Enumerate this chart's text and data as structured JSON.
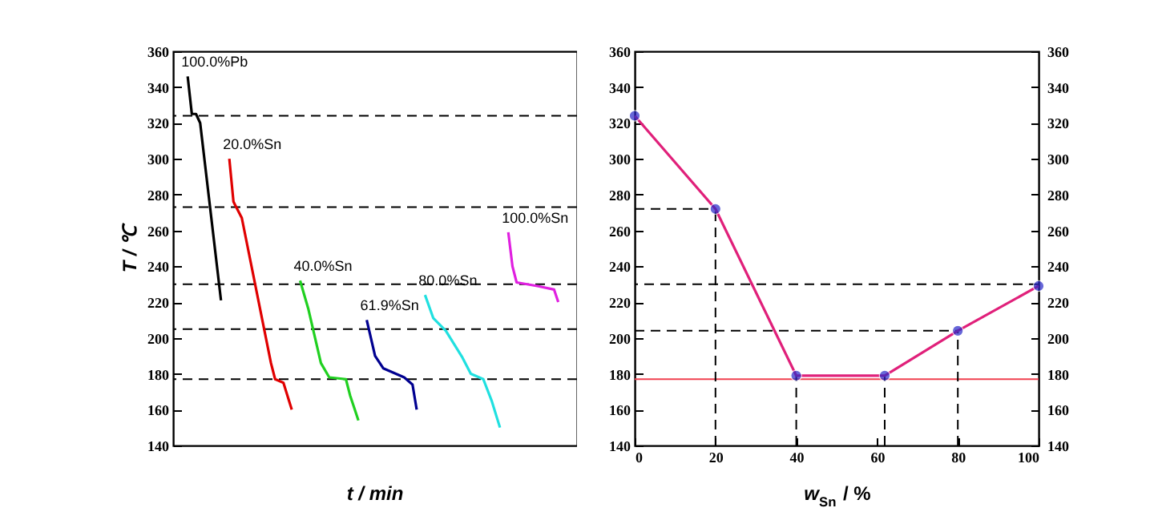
{
  "chart_data": [
    {
      "type": "line",
      "xlabel": "t / min",
      "ylabel": "T / ℃",
      "categories": [
        null,
        null,
        null,
        null,
        null,
        null,
        null,
        null,
        null,
        null,
        null,
        null,
        null,
        null,
        null,
        null,
        null,
        null,
        null,
        null,
        null,
        null,
        null,
        null,
        null,
        null,
        null,
        null,
        null,
        null,
        null,
        null,
        null,
        null,
        null,
        null,
        null,
        null,
        null,
        null,
        null,
        null,
        null,
        null,
        null,
        null,
        null,
        null,
        null,
        null,
        null,
        null,
        null,
        null,
        null,
        null,
        null,
        null,
        null,
        null,
        null,
        null,
        null,
        null,
        null,
        null,
        null,
        null,
        null,
        null,
        null,
        null,
        null,
        null,
        null,
        null,
        null,
        null,
        null,
        null,
        null,
        null,
        null,
        null,
        null,
        null,
        null,
        null,
        null,
        null,
        null,
        null,
        null,
        null,
        null,
        null,
        null
      ],
      "ylim": [
        140,
        360
      ],
      "yticks": [
        140,
        160,
        180,
        200,
        220,
        240,
        260,
        280,
        300,
        320,
        340,
        360
      ],
      "tick_labels": "y",
      "grid": false,
      "marker": "none",
      "line_style": "solid",
      "series": [
        {
          "name": "100.0%Pb",
          "color": "#000000",
          "values": [
            null,
            null,
            null,
            346,
            325,
            325,
            320,
            null,
            null,
            null,
            null,
            221,
            null,
            null,
            null,
            null,
            null,
            null,
            null,
            null,
            null,
            null,
            null,
            null,
            null,
            null,
            null,
            null,
            null,
            null,
            null,
            null,
            null,
            null,
            null,
            null,
            null,
            null,
            null,
            null,
            null,
            null,
            null,
            null,
            null,
            null,
            null,
            null,
            null,
            null,
            null,
            null,
            null,
            null,
            null,
            null,
            null,
            null,
            null,
            null,
            null,
            null,
            null,
            null,
            null,
            null,
            null,
            null,
            null,
            null,
            null,
            null,
            null,
            null,
            null,
            null,
            null,
            null,
            null,
            null,
            null,
            null,
            null,
            null,
            null,
            null,
            null,
            null,
            null,
            null,
            null,
            null,
            null,
            null,
            null,
            null,
            null
          ]
        },
        {
          "name": "20.0%Sn",
          "color": "#e00000",
          "values": [
            null,
            null,
            null,
            null,
            null,
            null,
            null,
            null,
            null,
            null,
            null,
            null,
            null,
            300,
            276,
            null,
            267,
            null,
            null,
            null,
            null,
            null,
            null,
            186,
            177,
            null,
            175,
            null,
            160,
            null,
            null,
            null,
            null,
            null,
            null,
            null,
            null,
            null,
            null,
            null,
            null,
            null,
            null,
            null,
            null,
            null,
            null,
            null,
            null,
            null,
            null,
            null,
            null,
            null,
            null,
            null,
            null,
            null,
            null,
            null,
            null,
            null,
            null,
            null,
            null,
            null,
            null,
            null,
            null,
            null,
            null,
            null,
            null,
            null,
            null,
            null,
            null,
            null,
            null,
            null,
            null,
            null,
            null,
            null,
            null,
            null,
            null,
            null,
            null,
            null,
            null,
            null,
            null,
            null,
            null,
            null,
            null
          ]
        },
        {
          "name": "40.0%Sn",
          "color": "#20d020",
          "values": [
            null,
            null,
            null,
            null,
            null,
            null,
            null,
            null,
            null,
            null,
            null,
            null,
            null,
            null,
            null,
            null,
            null,
            null,
            null,
            null,
            null,
            null,
            null,
            null,
            null,
            null,
            null,
            null,
            null,
            null,
            232,
            null,
            216,
            null,
            null,
            186,
            null,
            178,
            null,
            null,
            null,
            177,
            168,
            null,
            154,
            null,
            null,
            null,
            null,
            null,
            null,
            null,
            null,
            null,
            null,
            null,
            null,
            null,
            null,
            null,
            null,
            null,
            null,
            null,
            null,
            null,
            null,
            null,
            null,
            null,
            null,
            null,
            null,
            null,
            null,
            null,
            null,
            null,
            null,
            null,
            null,
            null,
            null,
            null,
            null,
            null,
            null,
            null,
            null,
            null,
            null,
            null,
            null,
            null,
            null,
            null,
            null
          ]
        },
        {
          "name": "61.9%Sn",
          "color": "#000090",
          "values": [
            null,
            null,
            null,
            null,
            null,
            null,
            null,
            null,
            null,
            null,
            null,
            null,
            null,
            null,
            null,
            null,
            null,
            null,
            null,
            null,
            null,
            null,
            null,
            null,
            null,
            null,
            null,
            null,
            null,
            null,
            null,
            null,
            null,
            null,
            null,
            null,
            null,
            null,
            null,
            null,
            null,
            null,
            null,
            null,
            null,
            null,
            210,
            null,
            190,
            null,
            183,
            null,
            null,
            null,
            null,
            178,
            null,
            174,
            160,
            null,
            null,
            null,
            null,
            null,
            null,
            null,
            null,
            null,
            null,
            null,
            null,
            null,
            null,
            null,
            null,
            null,
            null,
            null,
            null,
            null,
            null,
            null,
            null,
            null,
            null,
            null,
            null,
            null,
            null,
            null,
            null,
            null,
            null,
            null,
            null,
            null,
            null
          ]
        },
        {
          "name": "80.0%Sn",
          "color": "#20e0e0",
          "values": [
            null,
            null,
            null,
            null,
            null,
            null,
            null,
            null,
            null,
            null,
            null,
            null,
            null,
            null,
            null,
            null,
            null,
            null,
            null,
            null,
            null,
            null,
            null,
            null,
            null,
            null,
            null,
            null,
            null,
            null,
            null,
            null,
            null,
            null,
            null,
            null,
            null,
            null,
            null,
            null,
            null,
            null,
            null,
            null,
            null,
            null,
            null,
            null,
            null,
            null,
            null,
            null,
            null,
            null,
            null,
            null,
            null,
            null,
            null,
            null,
            224,
            null,
            211,
            null,
            null,
            204,
            null,
            null,
            null,
            189,
            null,
            180,
            null,
            null,
            177,
            null,
            165,
            null,
            150,
            null,
            null,
            null,
            null,
            null,
            null,
            null,
            null,
            null,
            null,
            null,
            null,
            null,
            null,
            null,
            null,
            null,
            null
          ]
        },
        {
          "name": "100.0%Sn",
          "color": "#e020e0",
          "values": [
            null,
            null,
            null,
            null,
            null,
            null,
            null,
            null,
            null,
            null,
            null,
            null,
            null,
            null,
            null,
            null,
            null,
            null,
            null,
            null,
            null,
            null,
            null,
            null,
            null,
            null,
            null,
            null,
            null,
            null,
            null,
            null,
            null,
            null,
            null,
            null,
            null,
            null,
            null,
            null,
            null,
            null,
            null,
            null,
            null,
            null,
            null,
            null,
            null,
            null,
            null,
            null,
            null,
            null,
            null,
            null,
            null,
            null,
            null,
            null,
            null,
            null,
            null,
            null,
            null,
            null,
            null,
            null,
            null,
            null,
            null,
            null,
            null,
            null,
            null,
            null,
            null,
            null,
            null,
            null,
            259,
            240,
            231,
            null,
            null,
            null,
            null,
            229,
            null,
            null,
            null,
            227,
            220,
            null,
            null,
            null,
            null
          ]
        }
      ],
      "ref_lines": [
        {
          "axis": "y",
          "value": 324,
          "color": "#000000",
          "line_style": "dashed"
        },
        {
          "axis": "y",
          "value": 273,
          "color": "#000000",
          "line_style": "dashed"
        },
        {
          "axis": "y",
          "value": 230,
          "color": "#000000",
          "line_style": "dashed"
        },
        {
          "axis": "y",
          "value": 205,
          "color": "#000000",
          "line_style": "dashed"
        },
        {
          "axis": "y",
          "value": 177,
          "color": "#000000",
          "line_style": "dashed"
        }
      ]
    },
    {
      "type": "line",
      "xlabel": "w$_{Sn}$ / %",
      "xlim": [
        0,
        100
      ],
      "xticks": [
        0,
        20,
        40,
        60,
        80,
        100
      ],
      "ylim": [
        140,
        360
      ],
      "yticks": [
        140,
        160,
        180,
        200,
        220,
        240,
        260,
        280,
        300,
        320,
        340,
        360
      ],
      "y2lim": [
        140,
        360
      ],
      "y2ticks": [
        140,
        160,
        180,
        200,
        220,
        240,
        260,
        280,
        300,
        320,
        340,
        360
      ],
      "grid": false,
      "x": [
        0,
        20,
        40,
        61.9,
        80,
        100
      ],
      "series": [
        {
          "color": "#e0207a",
          "marker": "none",
          "values": [
            324,
            272,
            179,
            179,
            204,
            229
          ]
        },
        {
          "type": "scatter",
          "color": "#2828c8",
          "marker": "circle",
          "values": [
            324,
            272,
            179,
            179,
            204,
            229
          ]
        }
      ],
      "ref_lines": [
        {
          "axis": "y",
          "value": 272,
          "color": "#000000",
          "line_style": "dashed"
        },
        {
          "axis": "y",
          "value": 230,
          "color": "#000000",
          "line_style": "dashed"
        },
        {
          "axis": "y",
          "value": 204,
          "color": "#000000",
          "line_style": "dashed"
        },
        {
          "axis": "y",
          "value": 177,
          "color": "#f04050",
          "line_style": "solid"
        },
        {
          "axis": "x",
          "value": 20,
          "color": "#000000",
          "line_style": "dashed"
        },
        {
          "axis": "x",
          "value": 40,
          "color": "#000000",
          "line_style": "dashed"
        },
        {
          "axis": "x",
          "value": 61.9,
          "color": "#000000",
          "line_style": "dashed"
        },
        {
          "axis": "x",
          "value": 80,
          "color": "#000000",
          "line_style": "dashed"
        }
      ]
    }
  ]
}
